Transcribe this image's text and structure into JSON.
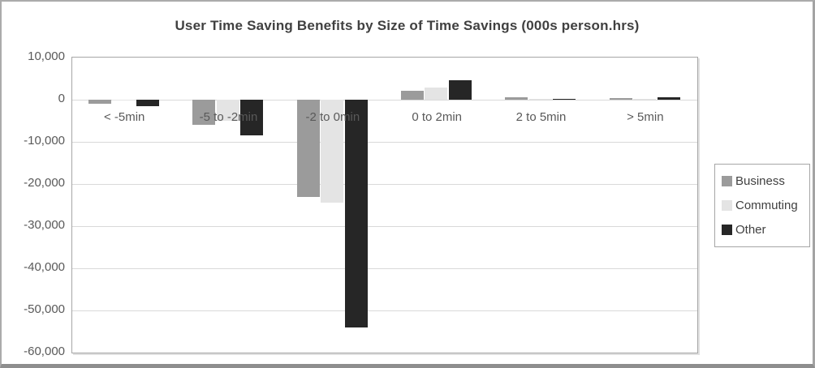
{
  "chart_data": {
    "type": "bar",
    "title": "User Time Saving Benefits by Size of Time Savings (000s person.hrs)",
    "categories": [
      "< -5min",
      "-5 to -2min",
      "-2 to 0min",
      "0 to 2min",
      "2 to 5min",
      "> 5min"
    ],
    "series": [
      {
        "name": "Business",
        "color": "#9b9b9b",
        "values": [
          -1000,
          -6000,
          -23000,
          2200,
          500,
          400
        ]
      },
      {
        "name": "Commuting",
        "color": "#e4e4e4",
        "values": [
          -100,
          -5000,
          -24500,
          2900,
          100,
          100
        ]
      },
      {
        "name": "Other",
        "color": "#262626",
        "values": [
          -1600,
          -8500,
          -54000,
          4600,
          100,
          600
        ]
      }
    ],
    "ylim": [
      -60000,
      10000
    ],
    "ytick_interval": 10000,
    "ytick_labels": [
      "10,000",
      "0",
      "-10,000",
      "-20,000",
      "-30,000",
      "-40,000",
      "-50,000",
      "-60,000"
    ],
    "grid": true,
    "legend_position": "right",
    "colors": {
      "title_text": "#404040",
      "axis_text": "#595959",
      "gridline": "#d9d9d9",
      "plot_border": "#a6a6a6",
      "legend_border": "#a6a6a6",
      "legend_text": "#404040"
    }
  }
}
